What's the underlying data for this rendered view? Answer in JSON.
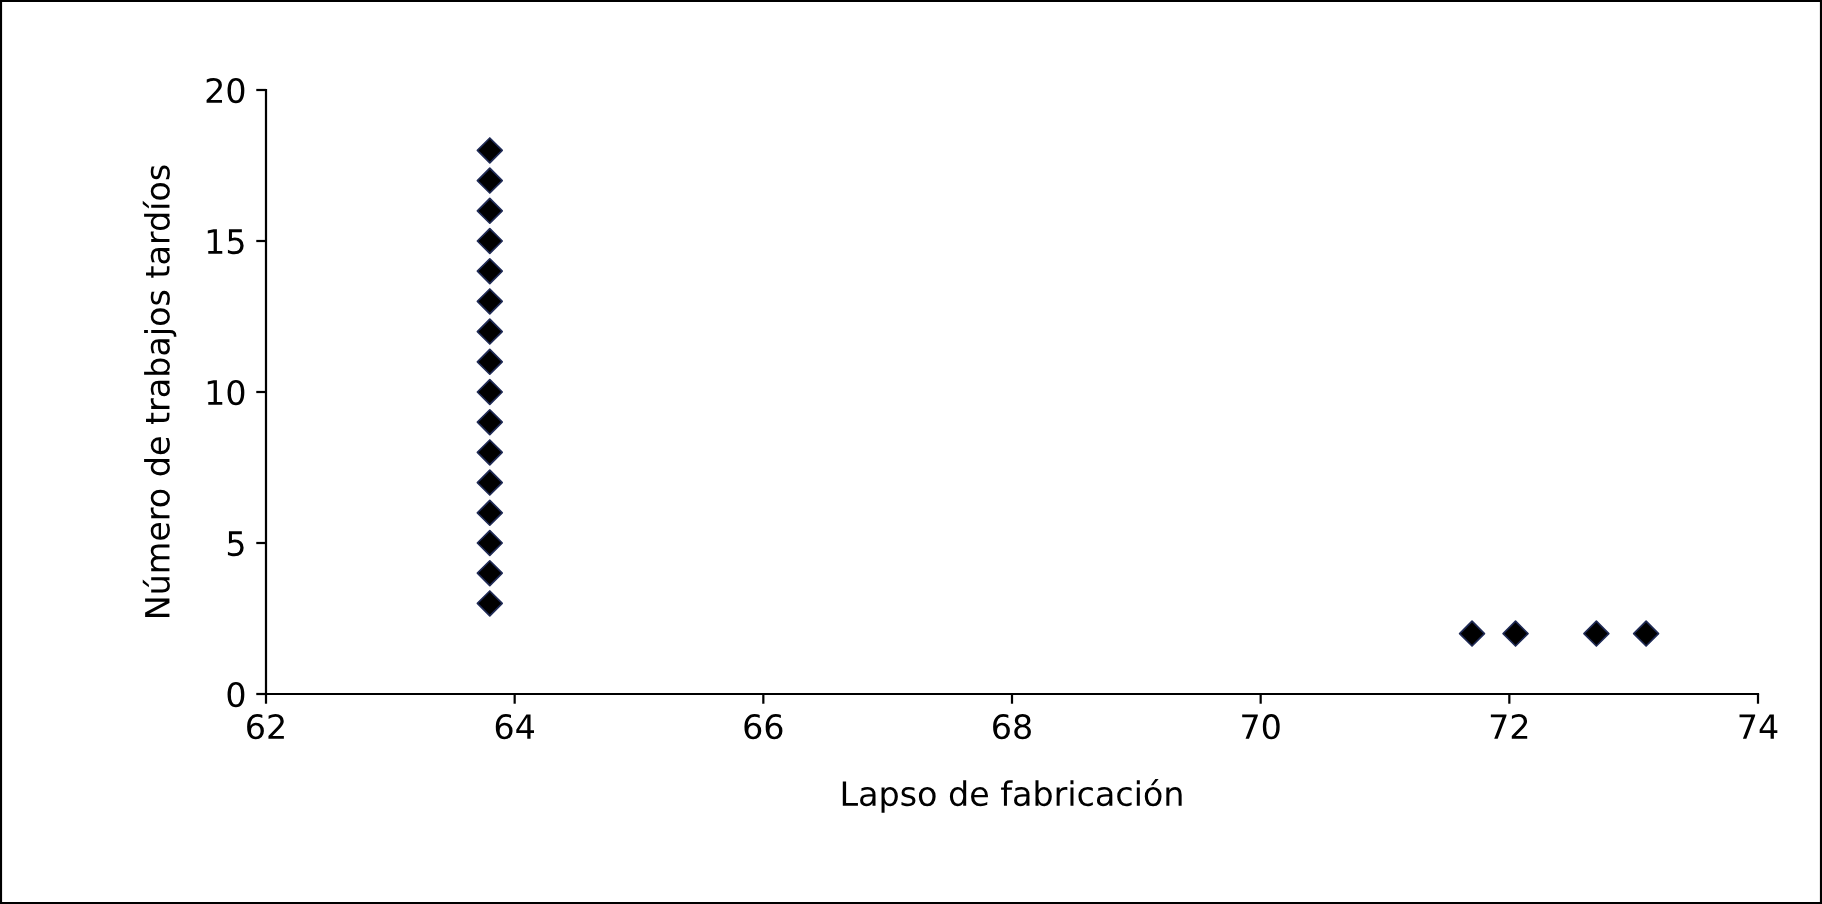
{
  "chart_data": {
    "type": "scatter",
    "xlabel": "Lapso de fabricación",
    "ylabel": "Número de trabajos tardíos",
    "series": [
      {
        "color": "#000000",
        "x": [
          63.8,
          63.8,
          63.8,
          63.8,
          63.8,
          63.8,
          63.8,
          63.8,
          63.8,
          63.8,
          63.8,
          63.8,
          63.8,
          63.8,
          63.8,
          63.8,
          71.7,
          72.05,
          72.7,
          73.1
        ],
        "values": [
          3,
          4,
          5,
          6,
          7,
          8,
          9,
          10,
          11,
          12,
          13,
          14,
          15,
          16,
          17,
          18,
          2,
          2,
          2,
          2
        ]
      }
    ],
    "xlim": [
      62,
      74
    ],
    "xticks": [
      62,
      64,
      66,
      68,
      70,
      72,
      74
    ],
    "ylim": [
      0,
      20
    ],
    "yticks": [
      0,
      5,
      10,
      15,
      20
    ],
    "grid": false,
    "legend": false,
    "marker": "diamond"
  }
}
